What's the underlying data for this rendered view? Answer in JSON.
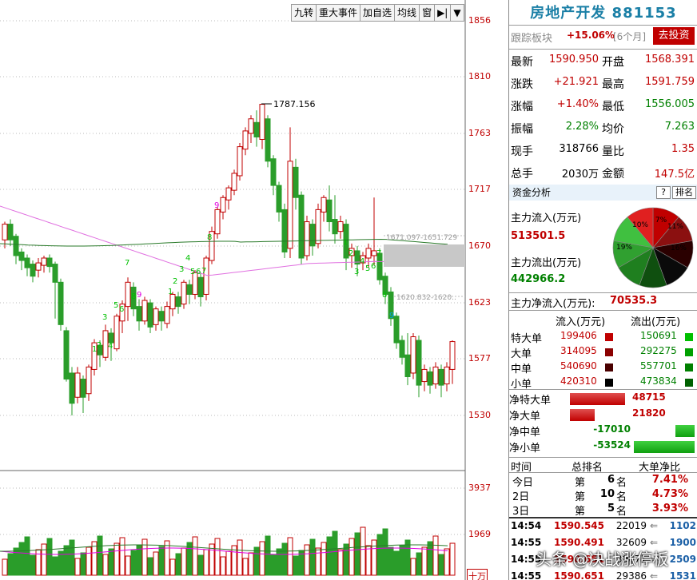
{
  "toolbar": {
    "items": [
      "九转",
      "重大事件",
      "加自选",
      "均线",
      "窗",
      "▶|",
      "▼"
    ]
  },
  "y_ticks": [
    "1856",
    "1810",
    "1763",
    "1717",
    "1670",
    "1623",
    "1577",
    "1530"
  ],
  "vol_ticks": [
    "3937",
    "1969"
  ],
  "vol_unit": "十万",
  "annotations": {
    "high": "1787.156",
    "range1": "1671.097-1651.729",
    "range2": "1620.832-1620.."
  },
  "panel": {
    "title": "房地产开发 881153",
    "track_label": "跟踪板块",
    "track_value": "+15.06%",
    "track_period": "[6个月]",
    "invest_btn": "去投资",
    "quotes": [
      {
        "l1": "最新",
        "v1": "1590.950",
        "l2": "开盘",
        "v2": "1568.391"
      },
      {
        "l1": "涨跌",
        "v1": "+21.921",
        "l2": "最高",
        "v2": "1591.759"
      },
      {
        "l1": "涨幅",
        "v1": "+1.40%",
        "l2": "最低",
        "v2": "1556.005"
      },
      {
        "l1": "振幅",
        "v1": "2.28%",
        "l2": "均价",
        "v2": "7.263"
      },
      {
        "l1": "现手",
        "v1": "318766",
        "l2": "量比",
        "v2": "1.35"
      },
      {
        "l1": "总手",
        "v1": "2030万",
        "l2": "金额",
        "v2": "147.5亿"
      }
    ],
    "fund_head": "资金分析",
    "fund_btn_q": "?",
    "fund_btn_rank": "排名",
    "inflow_label": "主力流入(万元)",
    "inflow_value": "513501.5",
    "outflow_label": "主力流出(万元)",
    "outflow_value": "442966.2",
    "net_label": "主力净流入(万元):",
    "net_value": "70535.3",
    "pie_labels": [
      "7%",
      "11%",
      "10%",
      "19%",
      "16%"
    ],
    "flow_head": {
      "in": "流入(万元)",
      "out": "流出(万元)"
    },
    "flows": [
      {
        "name": "特大单",
        "in": "199406",
        "out": "150691"
      },
      {
        "name": "大单",
        "in": "314095",
        "out": "292275"
      },
      {
        "name": "中单",
        "in": "540690",
        "out": "557701"
      },
      {
        "name": "小单",
        "in": "420310",
        "out": "473834"
      }
    ],
    "nets": [
      {
        "name": "净特大单",
        "value": "48715",
        "pos": true,
        "frac": 0.91
      },
      {
        "name": "净大单",
        "value": "21820",
        "pos": true,
        "frac": 0.41
      },
      {
        "name": "净中单",
        "value": "-17010",
        "pos": false,
        "frac": 0.32
      },
      {
        "name": "净小单",
        "value": "-53524",
        "pos": false,
        "frac": 1.0
      }
    ],
    "rank_head": {
      "time": "时间",
      "rank": "总排名",
      "ratio": "大单净比"
    },
    "ranks": [
      {
        "day": "今日",
        "pre": "第",
        "n": "6",
        "suf": "名",
        "ratio": "7.41%"
      },
      {
        "day": "2日",
        "pre": "第",
        "n": "10",
        "suf": "名",
        "ratio": "4.73%"
      },
      {
        "day": "3日",
        "pre": "第",
        "n": "5",
        "suf": "名",
        "ratio": "3.93%"
      }
    ],
    "trades": [
      {
        "time": "14:54",
        "price": "1590.545",
        "vol": "22019",
        "arrow": "⇐",
        "num": "1102"
      },
      {
        "time": "14:55",
        "price": "1590.491",
        "vol": "32609",
        "arrow": "⇐",
        "num": "1900"
      },
      {
        "time": "14:55",
        "price": "1590.651",
        "vol": "39071",
        "arrow": "⇐",
        "num": "2509"
      },
      {
        "time": "14:55",
        "price": "1590.651",
        "vol": "29386",
        "arrow": "⇐",
        "num": "1531"
      }
    ]
  },
  "watermark": "头条 @决战涨停板",
  "colors": {
    "up": "#c00000",
    "down": "#2a9d2a",
    "ma_pink": "#e070e0",
    "ma_green": "#2a7a2a"
  }
}
